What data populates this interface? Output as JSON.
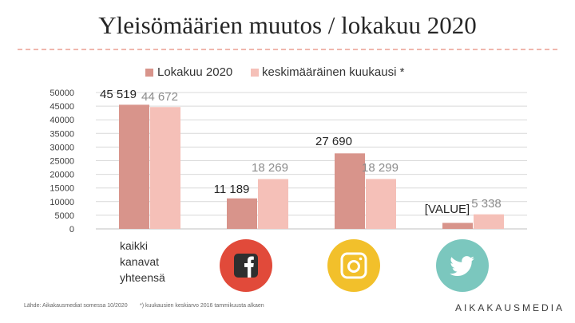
{
  "title": "Yleisömäärien muutos / lokakuu 2020",
  "colors": {
    "series_a": "#d8948b",
    "series_b": "#f5c0b8",
    "facebook": "#e14a3a",
    "instagram": "#f2c02b",
    "twitter": "#7bc7be"
  },
  "chart_data": {
    "type": "bar",
    "title": "Yleisömäärien muutos / lokakuu 2020",
    "categories": [
      "kaikki kanavat yhteensä",
      "facebook",
      "instagram",
      "twitter"
    ],
    "category_label_lines": [
      "kaikki",
      "kanavat",
      "yhteensä"
    ],
    "series": [
      {
        "name": "Lokakuu 2020",
        "values": [
          45519,
          11189,
          27690,
          2200
        ],
        "labels": [
          "45 519",
          "11 189",
          "27 690",
          "[VALUE]"
        ]
      },
      {
        "name": "keskimääräinen kuukausi *",
        "values": [
          44672,
          18269,
          18299,
          5338
        ],
        "labels": [
          "44 672",
          "18 269",
          "18 299",
          "5 338"
        ]
      }
    ],
    "yticks": [
      "50000",
      "45000",
      "40000",
      "35000",
      "30000",
      "25000",
      "20000",
      "15000",
      "10000",
      "5000",
      "0"
    ],
    "ylim": [
      0,
      50000
    ],
    "xlabel": "",
    "ylabel": "",
    "legend_position": "top"
  },
  "icons": [
    "facebook-icon",
    "instagram-icon",
    "twitter-icon"
  ],
  "footer": {
    "source": "Lähde: Aikakausmediat somessa 10/2020",
    "note": "*) kuukausien keskiarvo 2016 tammikuusta alkaen",
    "brand": "AIKAKAUSMEDIA"
  }
}
